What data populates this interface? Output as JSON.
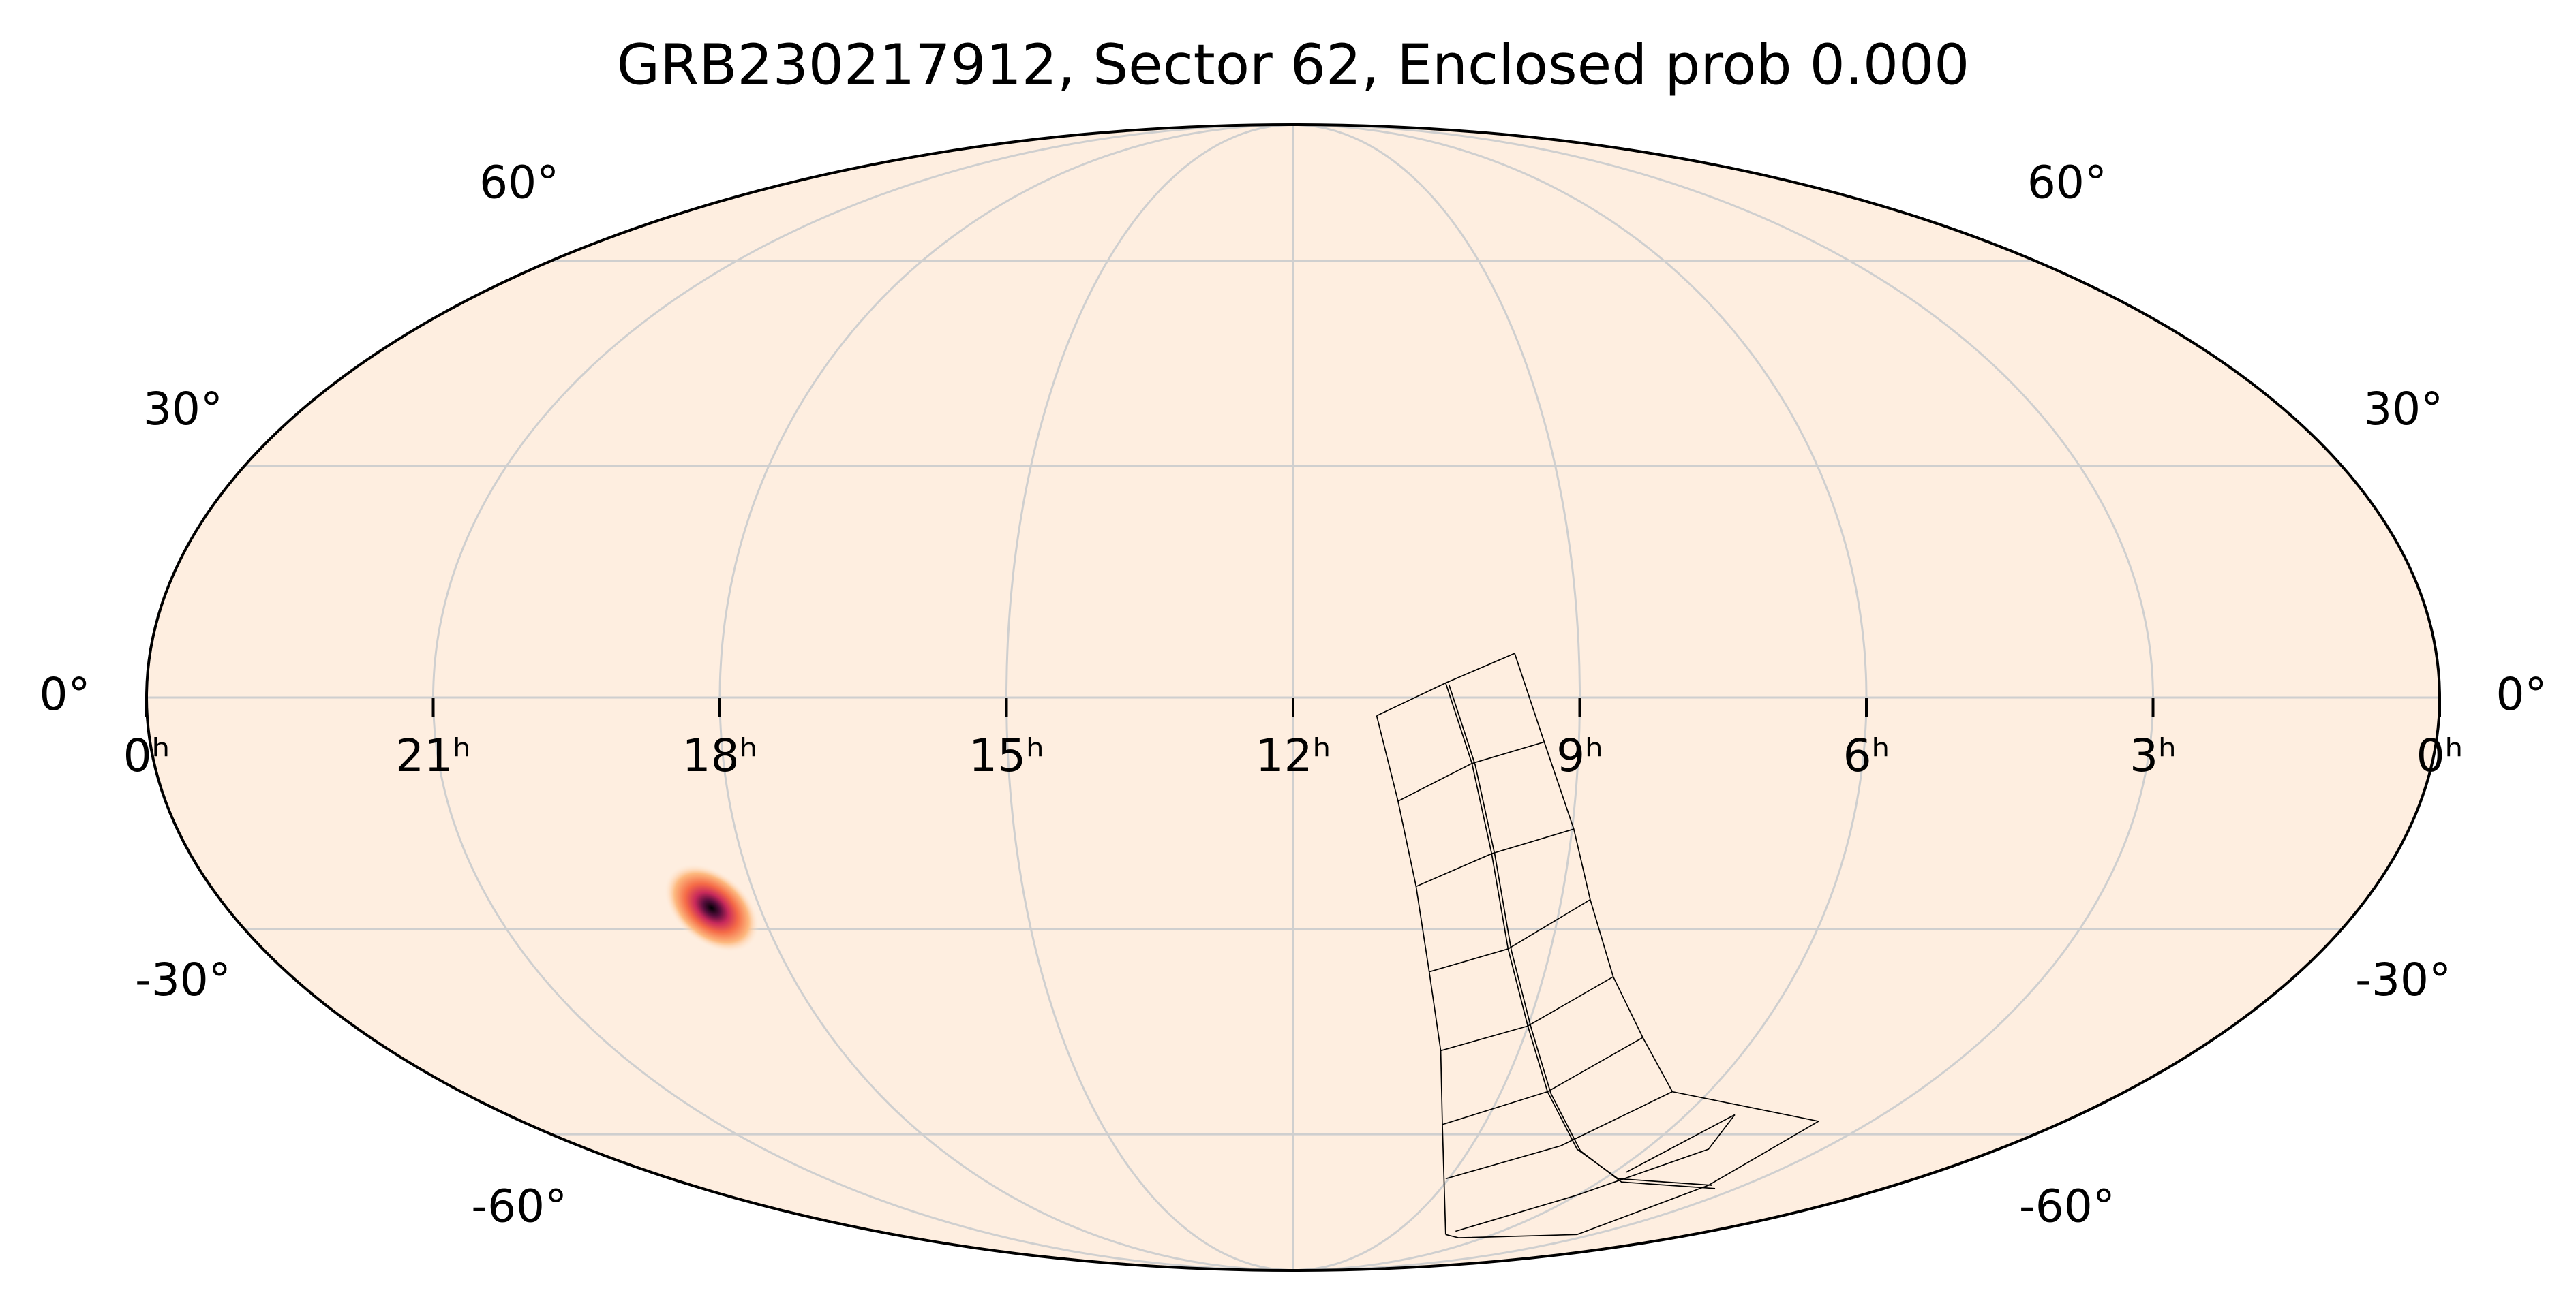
{
  "chart_data": {
    "type": "mollweide",
    "title": "GRB230217912, Sector 62, Enclosed prob 0.000",
    "xlim": [
      24,
      0
    ],
    "xticks": [
      {
        "value": 24,
        "label": "0ʰ"
      },
      {
        "value": 21,
        "label": "21ʰ"
      },
      {
        "value": 18,
        "label": "18ʰ"
      },
      {
        "value": 15,
        "label": "15ʰ"
      },
      {
        "value": 12,
        "label": "12ʰ"
      },
      {
        "value": 9,
        "label": "9ʰ"
      },
      {
        "value": 6,
        "label": "6ʰ"
      },
      {
        "value": 3,
        "label": "3ʰ"
      },
      {
        "value": 0,
        "label": "0ʰ"
      }
    ],
    "ylim": [
      -90,
      90
    ],
    "yticks": [
      {
        "value": -60,
        "label": "-60°"
      },
      {
        "value": -30,
        "label": "-30°"
      },
      {
        "value": 0,
        "label": "0°"
      },
      {
        "value": 30,
        "label": "30°"
      },
      {
        "value": 60,
        "label": "60°"
      }
    ],
    "grid": true
  }
}
